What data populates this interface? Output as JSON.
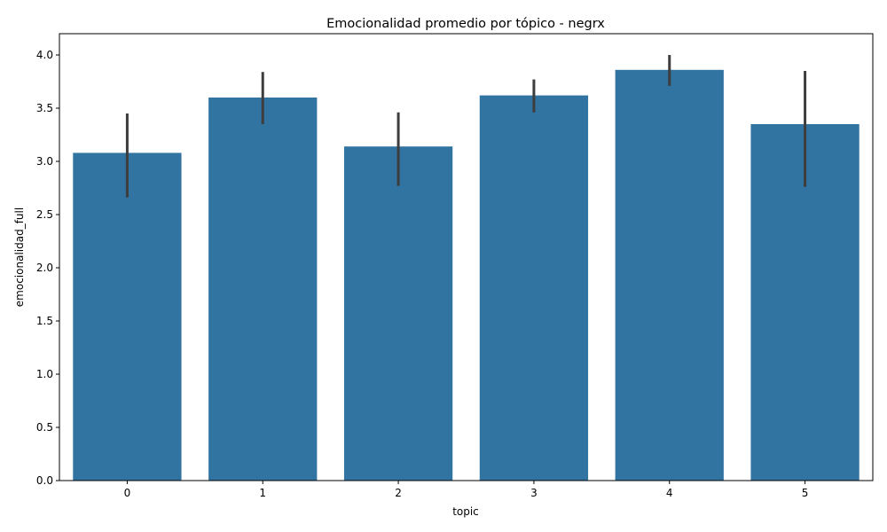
{
  "chart_data": {
    "type": "bar",
    "title": "Emocionalidad promedio por tópico - negrx",
    "xlabel": "topic",
    "ylabel": "emocionalidad_full",
    "categories": [
      "0",
      "1",
      "2",
      "3",
      "4",
      "5"
    ],
    "values": [
      3.08,
      3.6,
      3.14,
      3.62,
      3.86,
      3.35
    ],
    "error_low": [
      2.66,
      3.35,
      2.77,
      3.46,
      3.71,
      2.76
    ],
    "error_high": [
      3.45,
      3.84,
      3.46,
      3.77,
      4.0,
      3.85
    ],
    "ylim": [
      0,
      4.2
    ],
    "yticks": [
      "0.0",
      "0.5",
      "1.0",
      "1.5",
      "2.0",
      "2.5",
      "3.0",
      "3.5",
      "4.0"
    ],
    "grid": false,
    "colors": {
      "bar": "#3274a1",
      "errorbar": "#3d3d3d",
      "axis": "#000000"
    }
  }
}
